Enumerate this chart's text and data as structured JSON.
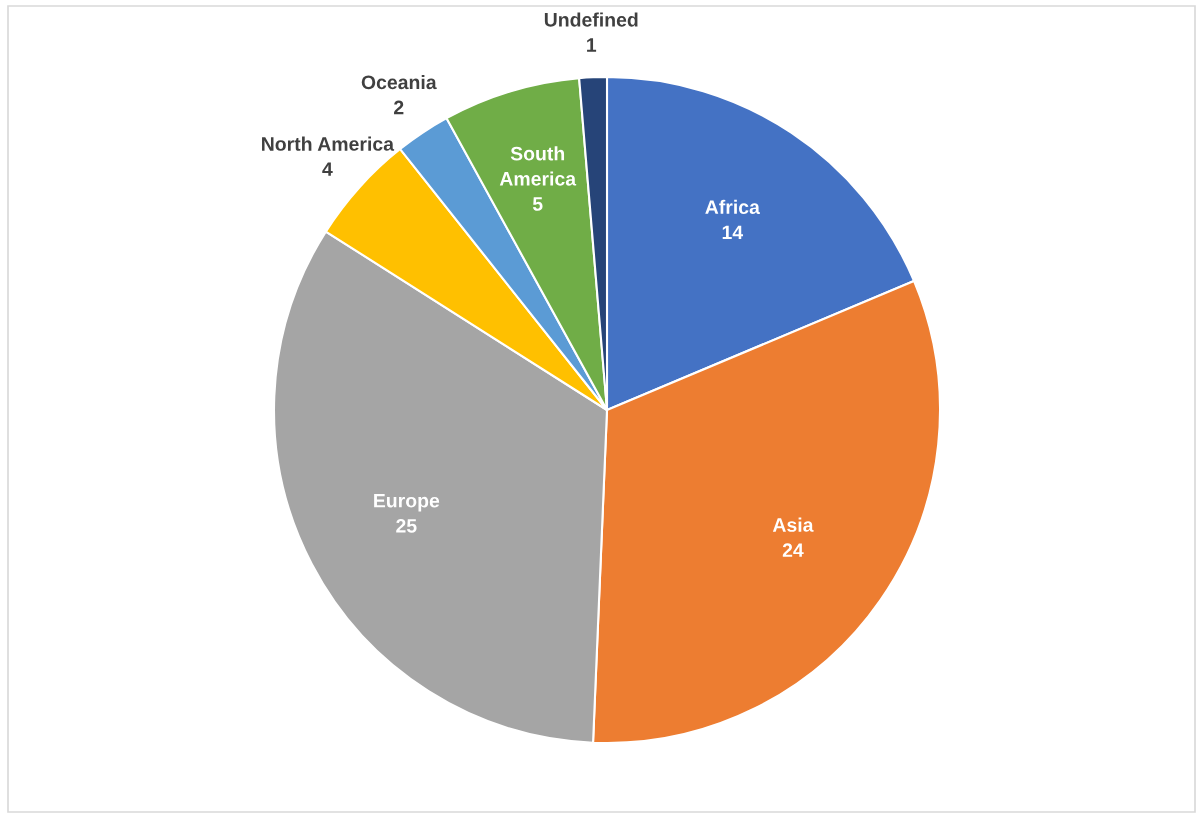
{
  "chart_data": {
    "type": "pie",
    "categories": [
      "Africa",
      "Asia",
      "Europe",
      "North America",
      "Oceania",
      "South America",
      "Undefined"
    ],
    "values": [
      14,
      24,
      25,
      4,
      2,
      5,
      1
    ],
    "colors": [
      "#4472c4",
      "#ed7d31",
      "#a5a5a5",
      "#ffc000",
      "#5b9bd5",
      "#70ad47",
      "#264478"
    ],
    "data_labels": true
  }
}
